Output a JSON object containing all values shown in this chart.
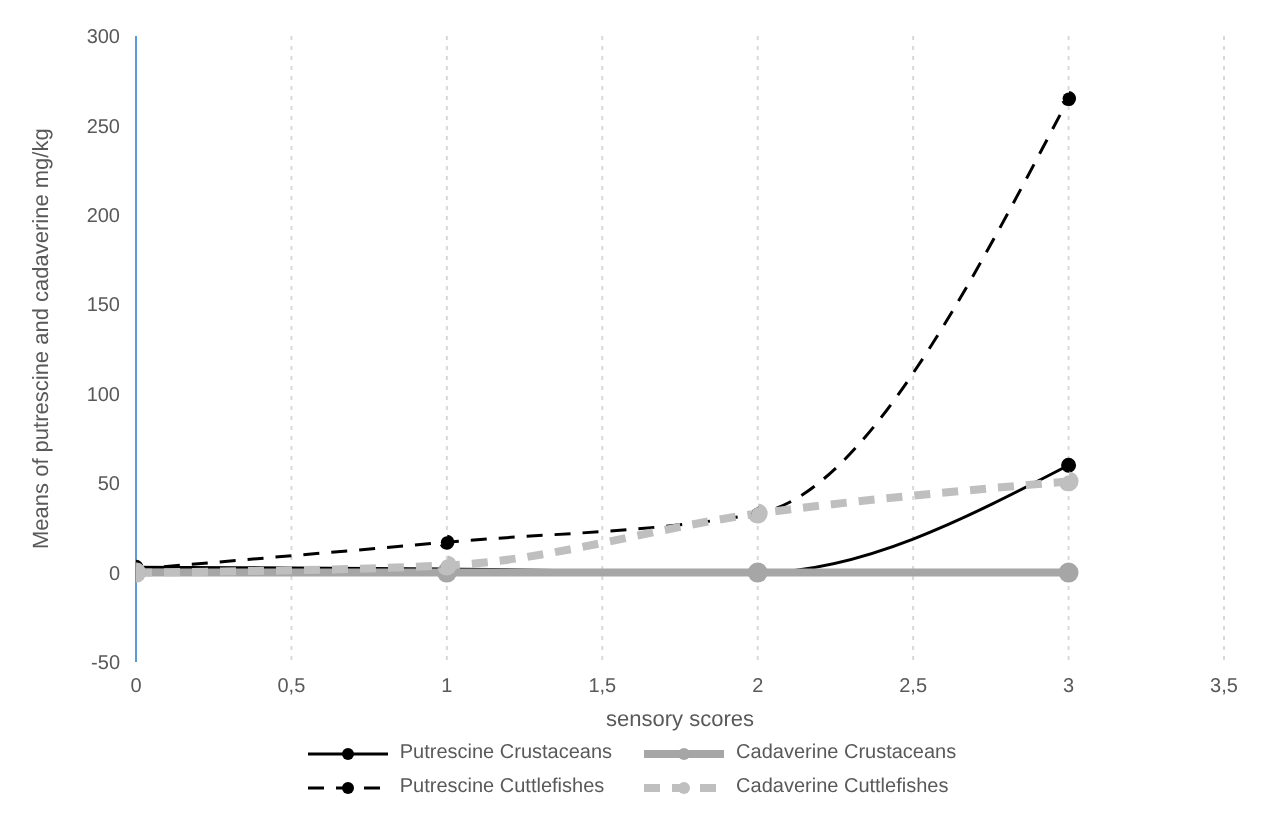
{
  "chart_data": {
    "type": "line",
    "xlabel": "sensory scores",
    "ylabel": "Means of putrescine and cadaverine mg/kg",
    "x": [
      0,
      1,
      2,
      3
    ],
    "xlim": [
      0,
      3.5
    ],
    "xticks": [
      {
        "value": 0,
        "label": "0"
      },
      {
        "value": 0.5,
        "label": "0,5"
      },
      {
        "value": 1,
        "label": "1"
      },
      {
        "value": 1.5,
        "label": "1,5"
      },
      {
        "value": 2,
        "label": "2"
      },
      {
        "value": 2.5,
        "label": "2,5"
      },
      {
        "value": 3,
        "label": "3"
      },
      {
        "value": 3.5,
        "label": "3,5"
      }
    ],
    "ylim": [
      -50,
      300
    ],
    "yticks": [
      -50,
      0,
      50,
      100,
      150,
      200,
      250,
      300
    ],
    "grid": "x",
    "legend": "bottom",
    "marker": "circle",
    "series": [
      {
        "name": "Putrescine Crustaceans",
        "color": "#000000",
        "line_style": "solid",
        "values": [
          3,
          2,
          0,
          60
        ]
      },
      {
        "name": "Putrescine Cuttlefishes",
        "color": "#000000",
        "line_style": "dashed",
        "values": [
          2,
          17,
          33,
          265
        ]
      },
      {
        "name": "Cadaverine Crustaceans",
        "color": "#a6a6a6",
        "line_style": "solid",
        "values": [
          0,
          0,
          0,
          0
        ]
      },
      {
        "name": "Cadaverine Cuttlefishes",
        "color": "#bfbfbf",
        "line_style": "dashed",
        "values": [
          0,
          4,
          33,
          51
        ]
      }
    ]
  }
}
